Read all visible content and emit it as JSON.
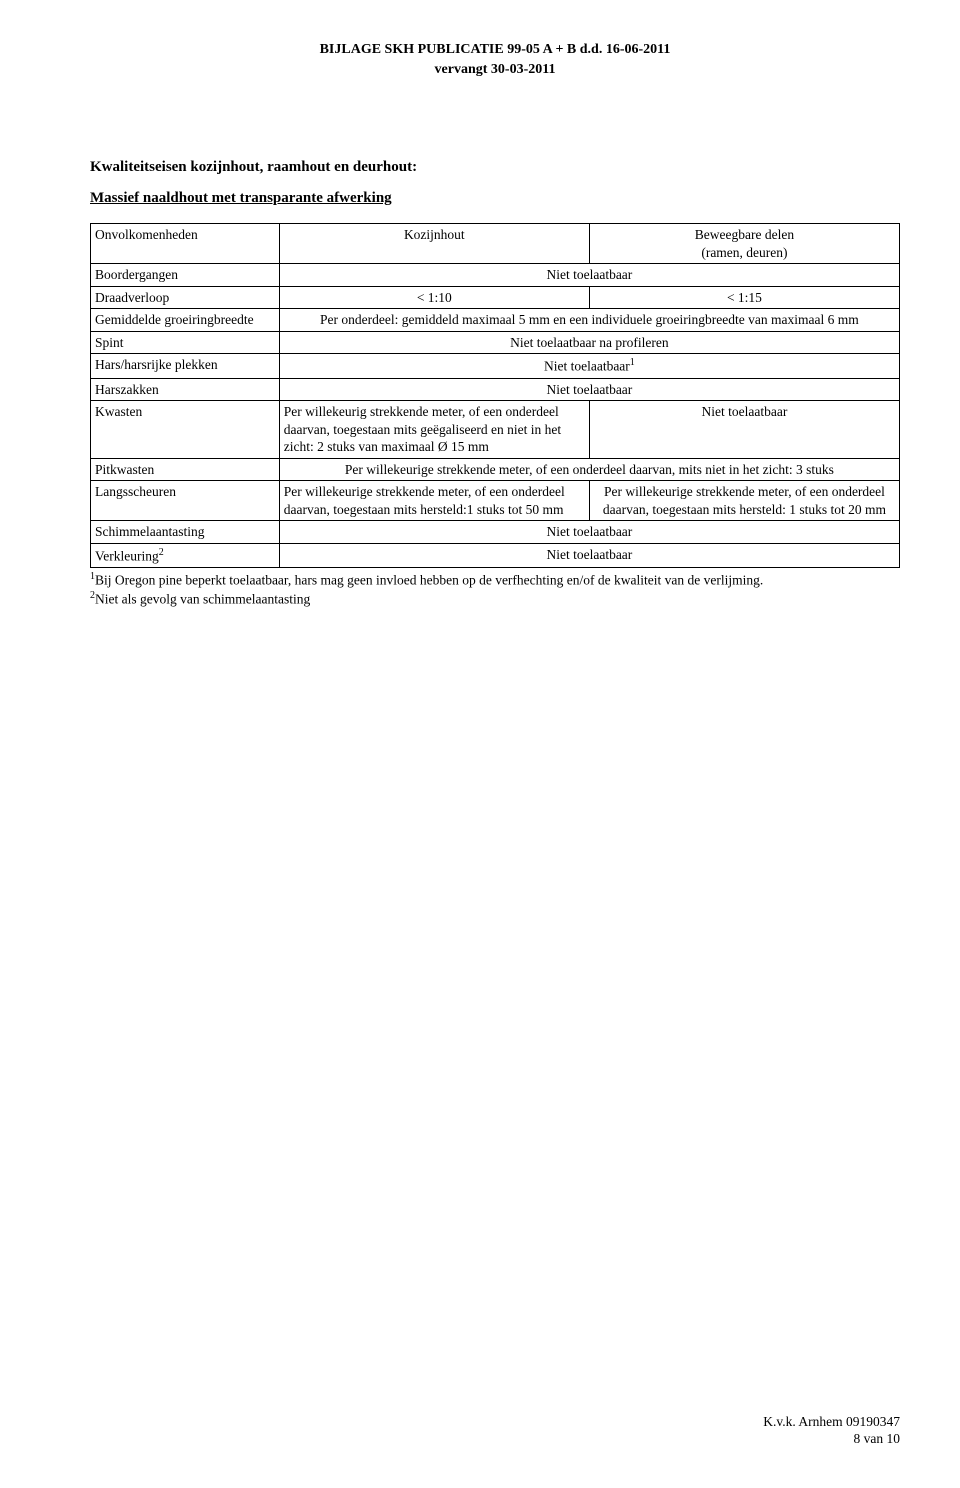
{
  "header": {
    "line1": "BIJLAGE SKH PUBLICATIE 99-05 A + B d.d. 16-06-2011",
    "line2": "vervangt 30-03-2011"
  },
  "section": {
    "title": "Kwaliteitseisen kozijnhout, raamhout en deurhout:",
    "subtitle": "Massief naaldhout met transparante afwerking"
  },
  "table": {
    "border_color": "#000000",
    "background_color": "#ffffff",
    "font_size_pt": 10,
    "col_widths_pct": [
      23,
      38.5,
      38.5
    ],
    "rows": [
      {
        "label": "Onvolkomenheden",
        "col2": "Kozijnhout",
        "col3": "Beweegbare delen\n(ramen, deuren)",
        "col2_align": "center",
        "col3_align": "center"
      },
      {
        "label": "Boordergangen",
        "merged": "Niet toelaatbaar",
        "merged_align": "center"
      },
      {
        "label": "Draadverloop",
        "col2": "< 1:10",
        "col3": "< 1:15",
        "col2_align": "center",
        "col3_align": "center"
      },
      {
        "label": "Gemiddelde groeiringbreedte",
        "merged": "Per onderdeel: gemiddeld maximaal 5 mm en een individuele groeiringbreedte van maximaal 6 mm",
        "merged_align": "center"
      },
      {
        "label": "Spint",
        "merged": "Niet toelaatbaar na profileren",
        "merged_align": "center"
      },
      {
        "label": "Hars/harsrijke plekken",
        "merged": "Niet toelaatbaar",
        "merged_sup": "1",
        "merged_align": "center"
      },
      {
        "label": "Harszakken",
        "merged": "Niet toelaatbaar",
        "merged_align": "center"
      },
      {
        "label": "Kwasten",
        "col2": "Per willekeurig strekkende meter, of een onderdeel daarvan,  toegestaan mits geëgaliseerd en niet in het zicht: 2 stuks van maximaal Ø 15 mm",
        "col3": "Niet toelaatbaar",
        "col2_align": "left",
        "col3_align": "center"
      },
      {
        "label": "Pitkwasten",
        "merged": "Per willekeurige strekkende meter, of een onderdeel daarvan, mits niet in het zicht: 3 stuks",
        "merged_align": "center"
      },
      {
        "label": "Langsscheuren",
        "col2": "Per willekeurige strekkende meter, of een onderdeel daarvan,  toegestaan mits hersteld:1 stuks tot 50 mm",
        "col3": "Per willekeurige strekkende meter, of een onderdeel daarvan,  toegestaan mits hersteld: 1 stuks tot 20 mm",
        "col2_align": "left",
        "col3_align": "center"
      },
      {
        "label": "Schimmelaantasting",
        "merged": "Niet toelaatbaar",
        "merged_align": "center"
      },
      {
        "label": "Verkleuring",
        "label_sup": "2",
        "merged": "Niet toelaatbaar",
        "merged_align": "center"
      }
    ]
  },
  "footnotes": {
    "n1_sup": "1",
    "n1_text": "Bij Oregon pine beperkt toelaatbaar, hars mag geen invloed hebben op de verfhechting en/of de kwaliteit van de verlijming.",
    "n2_sup": "2",
    "n2_text": "Niet als gevolg van schimmelaantasting"
  },
  "footer": {
    "line1": "K.v.k. Arnhem 09190347",
    "line2": "8 van 10"
  }
}
